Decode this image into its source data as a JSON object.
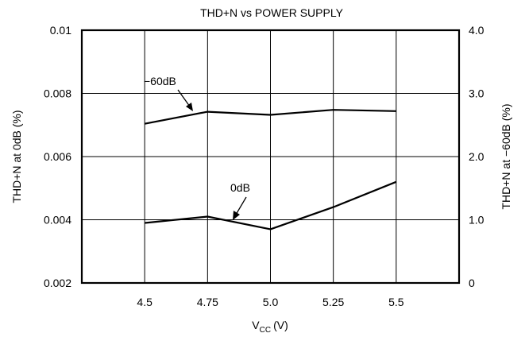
{
  "chart_data": {
    "type": "line",
    "title": "THD+N vs POWER SUPPLY",
    "xlabel": {
      "main": "V",
      "sub": "CC",
      "unit": "(V)"
    },
    "ylabel_left": "THD+N at 0dB (%)",
    "ylabel_right": "THD+N at −60dB (%)",
    "xlim": [
      4.25,
      5.75
    ],
    "ylim_left": [
      0.002,
      0.01
    ],
    "ylim_right": [
      0,
      4.0
    ],
    "x_ticks": [
      4.5,
      4.75,
      5.0,
      5.25,
      5.5
    ],
    "x_tick_labels": [
      "4.5",
      "4.75",
      "5.0",
      "5.25",
      "5.5"
    ],
    "left_ticks": [
      0.002,
      0.004,
      0.006,
      0.008,
      0.01
    ],
    "left_tick_labels": [
      "0.002",
      "0.004",
      "0.006",
      "0.008",
      "0.01"
    ],
    "right_ticks": [
      0,
      1.0,
      2.0,
      3.0,
      4.0
    ],
    "right_tick_labels": [
      "0",
      "1.0",
      "2.0",
      "3.0",
      "4.0"
    ],
    "grid": true,
    "series": [
      {
        "name": "0dB",
        "axis": "left",
        "x": [
          4.5,
          4.75,
          5.0,
          5.25,
          5.5
        ],
        "y": [
          0.0039,
          0.0041,
          0.0037,
          0.0044,
          0.0052
        ]
      },
      {
        "name": "−60dB",
        "axis": "right",
        "x": [
          4.5,
          4.75,
          5.0,
          5.25,
          5.5
        ],
        "y": [
          2.52,
          2.71,
          2.66,
          2.74,
          2.72
        ]
      }
    ]
  }
}
